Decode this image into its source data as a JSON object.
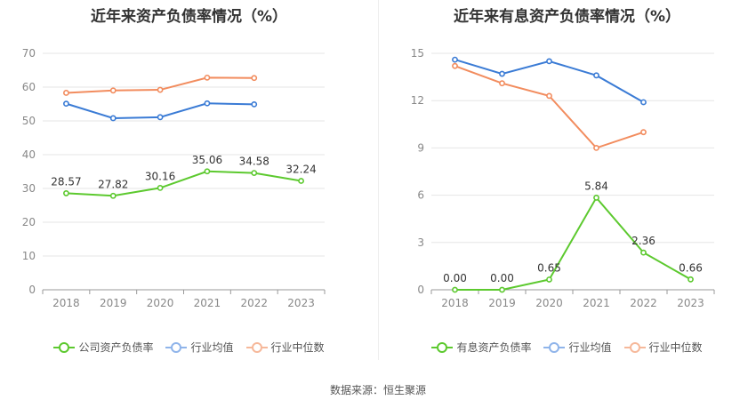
{
  "chart_data": [
    {
      "type": "line",
      "title": "近年来资产负债率情况（%）",
      "categories": [
        "2018",
        "2019",
        "2020",
        "2021",
        "2022",
        "2023"
      ],
      "ylim": [
        0,
        70
      ],
      "yticks": [
        0,
        10,
        20,
        30,
        40,
        50,
        60,
        70
      ],
      "legend_position": "bottom",
      "series": [
        {
          "name": "公司资产负债率",
          "color": "#5cc92e",
          "values": [
            28.57,
            27.82,
            30.16,
            35.06,
            34.58,
            32.24
          ],
          "labels": [
            "28.57",
            "27.82",
            "30.16",
            "35.06",
            "34.58",
            "32.24"
          ]
        },
        {
          "name": "行业均值",
          "color": "#3a7bd5",
          "values": [
            55.1,
            50.8,
            51.1,
            55.2,
            54.9,
            null
          ]
        },
        {
          "name": "行业中位数",
          "color": "#f28c5e",
          "values": [
            58.3,
            59.0,
            59.2,
            62.8,
            62.7,
            null
          ]
        }
      ]
    },
    {
      "type": "line",
      "title": "近年来有息资产负债率情况（%）",
      "categories": [
        "2018",
        "2019",
        "2020",
        "2021",
        "2022",
        "2023"
      ],
      "ylim": [
        0,
        15
      ],
      "yticks": [
        0,
        3,
        6,
        9,
        12,
        15
      ],
      "legend_position": "bottom",
      "series": [
        {
          "name": "有息资产负债率",
          "color": "#5cc92e",
          "values": [
            0.0,
            0.0,
            0.65,
            5.84,
            2.36,
            0.66
          ],
          "labels": [
            "0.00",
            "0.00",
            "0.65",
            "5.84",
            "2.36",
            "0.66"
          ]
        },
        {
          "name": "行业均值",
          "color": "#3a7bd5",
          "values": [
            14.6,
            13.7,
            14.5,
            13.6,
            11.9,
            null
          ]
        },
        {
          "name": "行业中位数",
          "color": "#f28c5e",
          "values": [
            14.2,
            13.1,
            12.3,
            9.0,
            10.0,
            null
          ]
        }
      ]
    }
  ],
  "footer": {
    "source": "数据来源：恒生聚源"
  }
}
